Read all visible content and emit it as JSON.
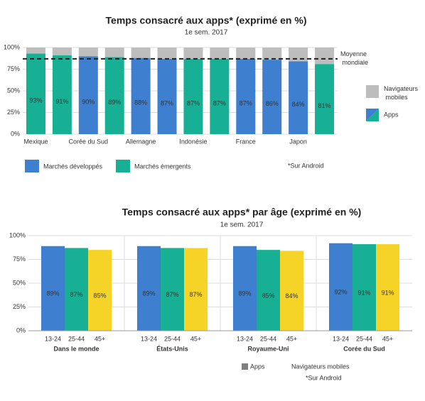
{
  "chart_data": [
    {
      "type": "bar",
      "stacked": true,
      "title": "Temps consacré aux apps* (exprimé en %)",
      "subtitle": "1e sem. 2017",
      "categories": [
        "Mexique",
        null,
        "Corée du Sud",
        null,
        "Allemagne",
        null,
        "Indonésie",
        null,
        "France",
        null,
        "Japon",
        null
      ],
      "series": [
        {
          "name": "Apps",
          "colors": [
            "#17b094",
            "#17b094",
            "#3f7fcf",
            "#17b094",
            "#3f7fcf",
            "#3f7fcf",
            "#17b094",
            "#17b094",
            "#3f7fcf",
            "#3f7fcf",
            "#3f7fcf",
            "#17b094"
          ],
          "values": [
            93,
            91,
            90,
            89,
            88,
            87,
            87,
            87,
            87,
            86,
            84,
            81
          ],
          "value_labels": [
            "93%",
            "91%",
            "90%",
            "89%",
            "88%",
            "87%",
            "87%",
            "87%",
            "87%",
            "86%",
            "84%",
            "81%"
          ]
        },
        {
          "name": "Navigateurs mobiles",
          "color": "#bdbdbd",
          "values": [
            7,
            9,
            10,
            11,
            12,
            13,
            13,
            13,
            13,
            14,
            16,
            19
          ]
        }
      ],
      "groups_legend": [
        {
          "name": "Marchés développés",
          "color": "#3f7fcf"
        },
        {
          "name": "Marchés émergents",
          "color": "#17b094"
        }
      ],
      "reference_line": {
        "value": 87,
        "label": "Moyenne mondiale"
      },
      "note": "*Sur Android",
      "ylim": [
        0,
        100
      ],
      "yticks": [
        {
          "value": 0,
          "label": "0%"
        },
        {
          "value": 25,
          "label": "25%"
        },
        {
          "value": 50,
          "label": "50%"
        },
        {
          "value": 75,
          "label": "75%"
        },
        {
          "value": 100,
          "label": "100%"
        }
      ],
      "grid": true
    },
    {
      "type": "bar",
      "title": "Temps consacré aux apps* par âge (exprimé en %)",
      "subtitle": "1e sem. 2017",
      "groups": [
        "Dans le monde",
        "États-Unis",
        "Royaume-Uni",
        "Corée du Sud"
      ],
      "subcategories": [
        "13-24",
        "25-44",
        "45+"
      ],
      "series": [
        {
          "color": "#3f7fcf",
          "values": [
            89,
            89,
            89,
            92
          ],
          "value_labels": [
            "89%",
            "89%",
            "89%",
            "92%"
          ]
        },
        {
          "color": "#17b094",
          "values": [
            87,
            87,
            85,
            91
          ],
          "value_labels": [
            "87%",
            "87%",
            "85%",
            "91%"
          ]
        },
        {
          "color": "#f5d327",
          "values": [
            85,
            87,
            84,
            91
          ],
          "value_labels": [
            "85%",
            "87%",
            "84%",
            "91%"
          ]
        }
      ],
      "legend": [
        {
          "name": "Apps",
          "color": "#808080"
        },
        {
          "name": "Navigateurs mobiles"
        }
      ],
      "note": "*Sur Android",
      "ylim": [
        0,
        100
      ],
      "yticks": [
        {
          "value": 0,
          "label": "0%"
        },
        {
          "value": 25,
          "label": "25%"
        },
        {
          "value": 50,
          "label": "50%"
        },
        {
          "value": 75,
          "label": "75%"
        },
        {
          "value": 100,
          "label": "100%"
        }
      ],
      "grid": true
    }
  ]
}
